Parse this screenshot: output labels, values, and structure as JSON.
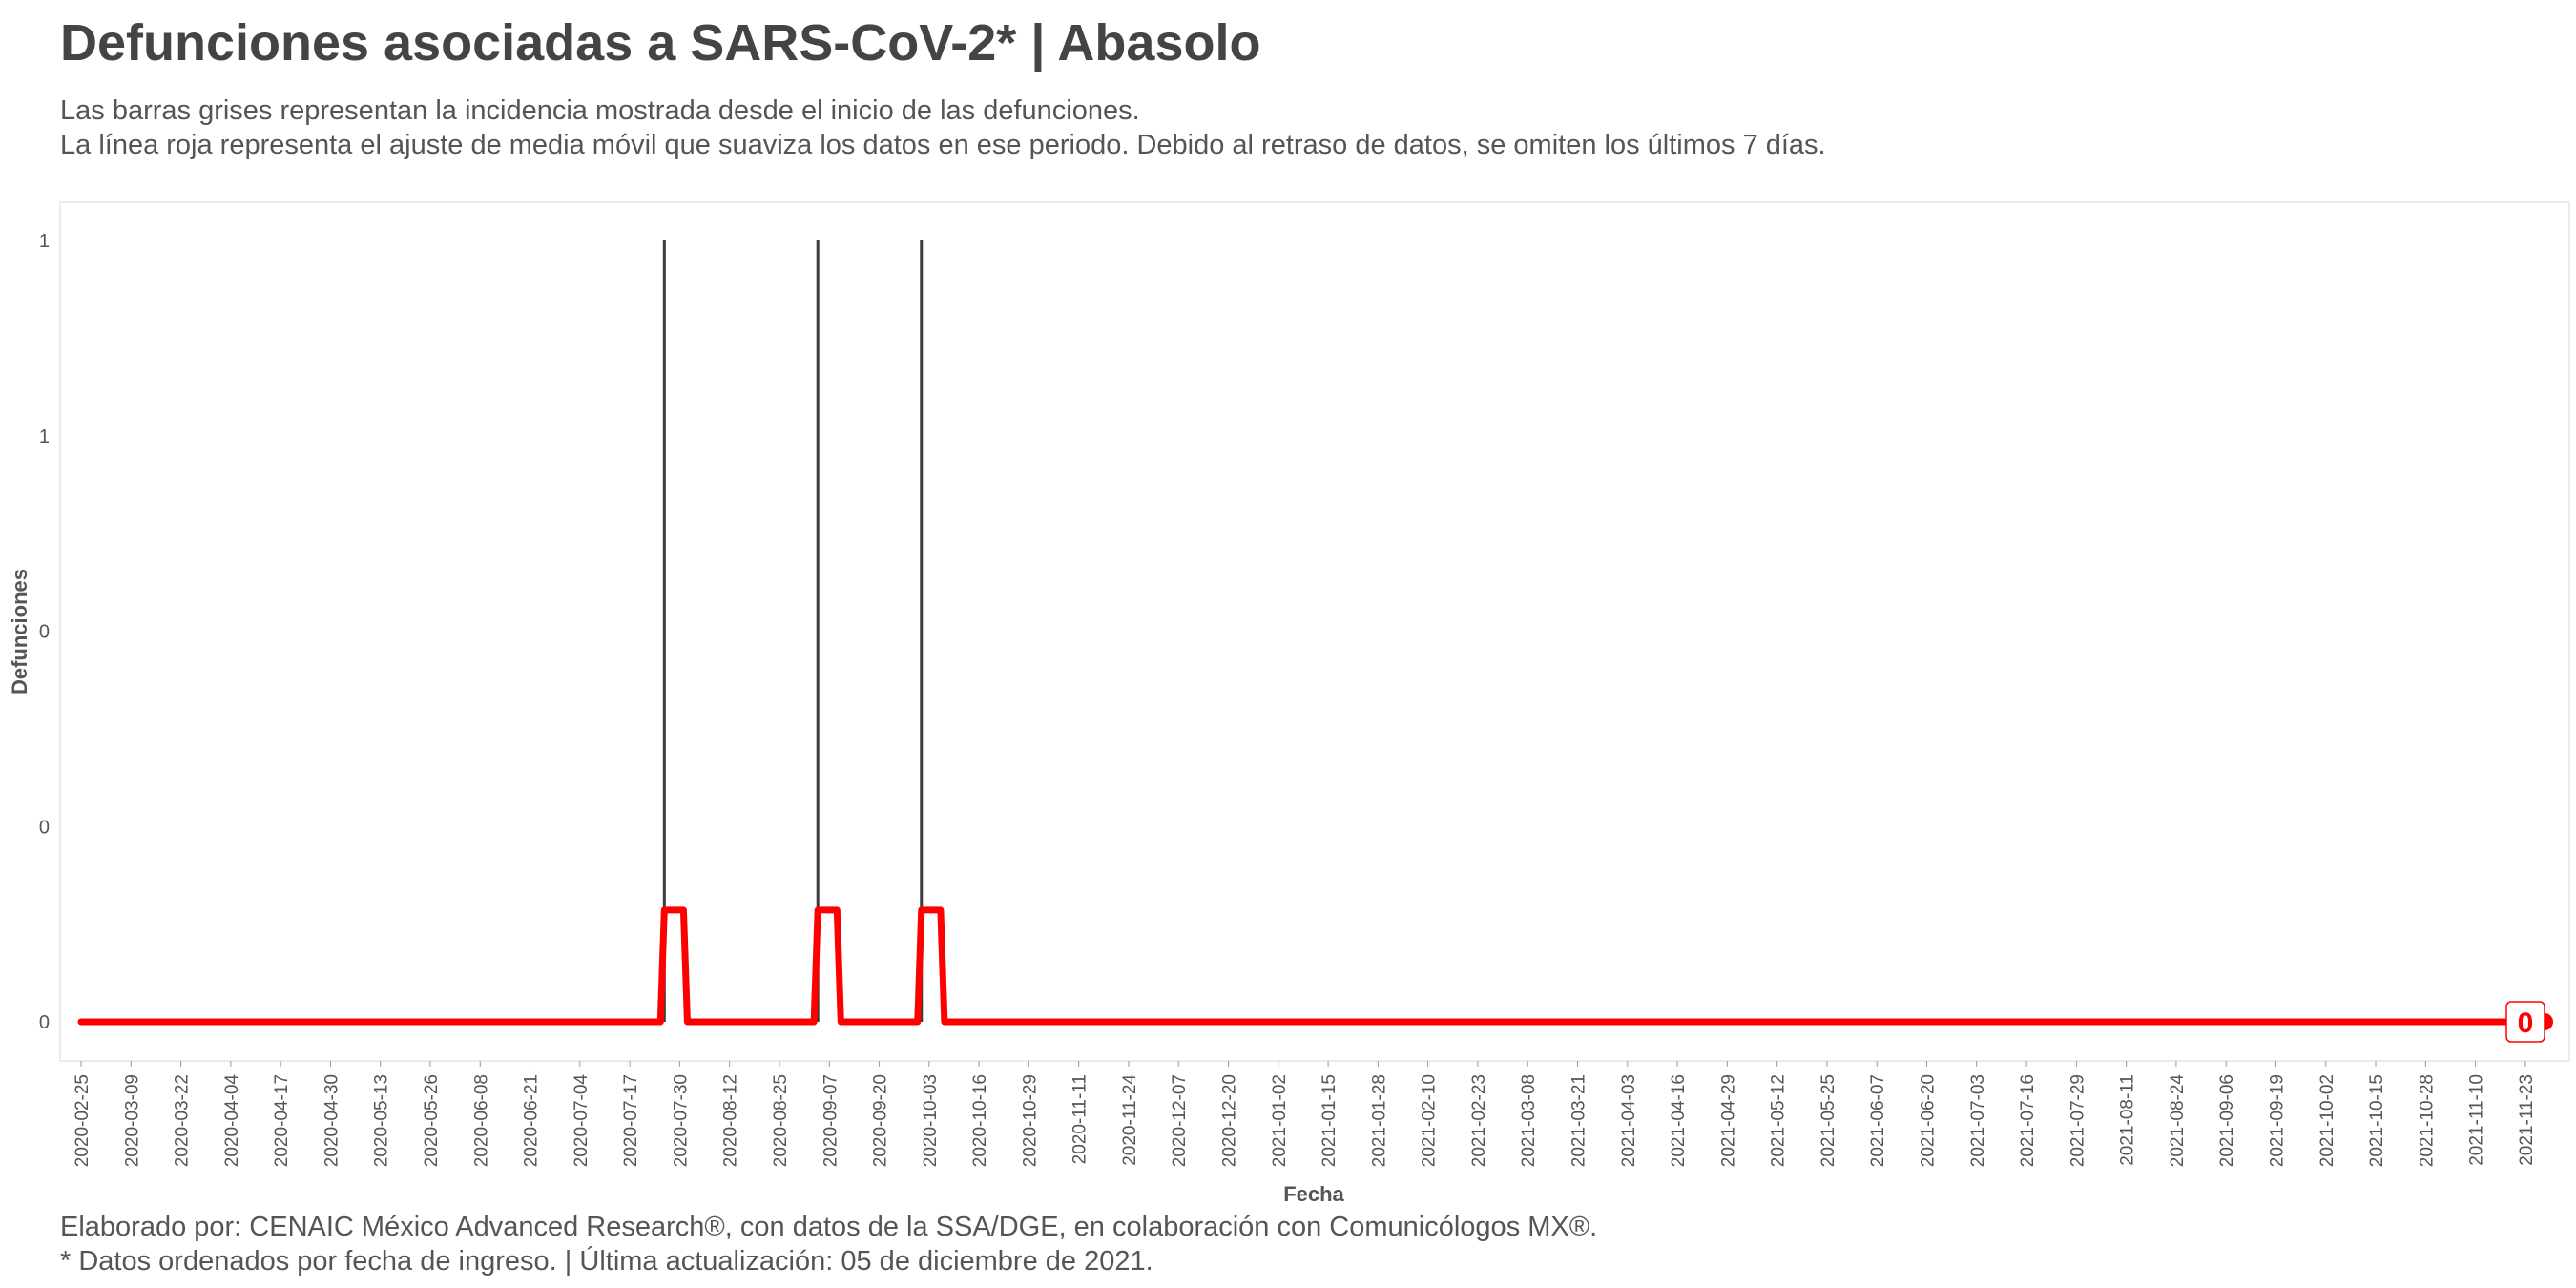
{
  "header": {
    "title": "Defunciones asociadas a SARS-CoV-2* | Abasolo",
    "subtitle_line1": "Las barras grises representan la incidencia mostrada desde el inicio de las defunciones.",
    "subtitle_line2": "La línea roja representa el ajuste de media móvil que suaviza los datos en ese periodo. Debido al retraso de datos, se omiten los últimos 7 días."
  },
  "footer": {
    "line1": "Elaborado por: CENAIC México Advanced Research®, con datos de la SSA/DGE, en colaboración con Comunicólogos MX®.",
    "line2": "* Datos ordenados por fecha de ingreso. | Última actualización: 05 de diciembre de 2021."
  },
  "colors": {
    "bars": "#3a3a3a",
    "moving_average": "#ff0000",
    "panel_border": "#e6e6e6"
  },
  "chart_data": {
    "type": "bar",
    "xlabel": "Fecha",
    "ylabel": "Defunciones",
    "x_start": "2020-02-25",
    "x_end": "2021-11-28",
    "ylim": [
      0,
      1
    ],
    "y_ticks": [
      0,
      0.25,
      0.5,
      0.75,
      1
    ],
    "y_tick_labels": [
      "0",
      "0",
      "0",
      "1",
      "1"
    ],
    "x_tick_labels": [
      "2020-02-25",
      "2020-03-09",
      "2020-03-22",
      "2020-04-04",
      "2020-04-17",
      "2020-04-30",
      "2020-05-13",
      "2020-05-26",
      "2020-06-08",
      "2020-06-21",
      "2020-07-04",
      "2020-07-17",
      "2020-07-30",
      "2020-08-12",
      "2020-08-25",
      "2020-09-07",
      "2020-09-20",
      "2020-10-03",
      "2020-10-16",
      "2020-10-29",
      "2020-11-11",
      "2020-11-24",
      "2020-12-07",
      "2020-12-20",
      "2021-01-02",
      "2021-01-15",
      "2021-01-28",
      "2021-02-10",
      "2021-02-23",
      "2021-03-08",
      "2021-03-21",
      "2021-04-03",
      "2021-04-16",
      "2021-04-29",
      "2021-05-12",
      "2021-05-25",
      "2021-06-07",
      "2021-06-20",
      "2021-07-03",
      "2021-07-16",
      "2021-07-29",
      "2021-08-11",
      "2021-08-24",
      "2021-09-06",
      "2021-09-19",
      "2021-10-02",
      "2021-10-15",
      "2021-10-28",
      "2021-11-10",
      "2021-11-23"
    ],
    "bars": [
      {
        "date": "2020-07-26",
        "value": 1
      },
      {
        "date": "2020-09-04",
        "value": 1
      },
      {
        "date": "2020-10-01",
        "value": 1
      }
    ],
    "moving_average": {
      "window_days": 7,
      "plateau_value": 0.143,
      "segments": [
        {
          "start": "2020-07-26",
          "end": "2020-08-01"
        },
        {
          "start": "2020-09-04",
          "end": "2020-09-10"
        },
        {
          "start": "2020-10-01",
          "end": "2020-10-07"
        }
      ]
    },
    "end_label": "0",
    "grid": false
  }
}
